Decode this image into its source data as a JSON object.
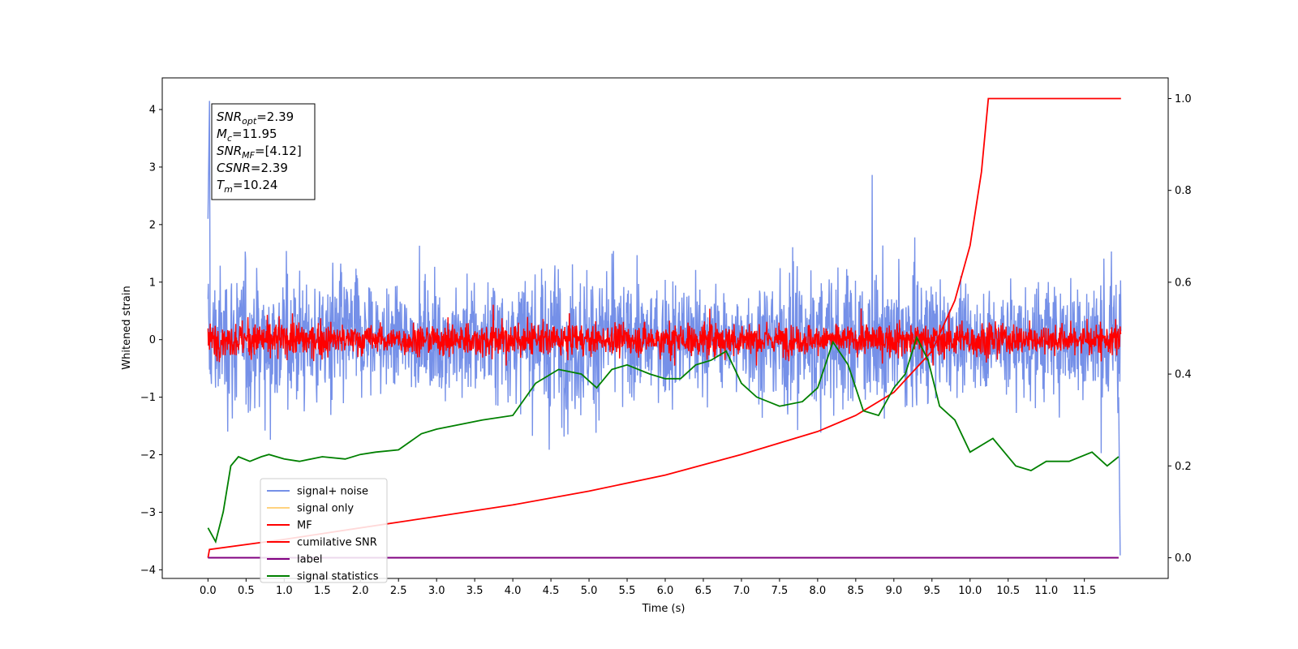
{
  "chart_data": {
    "type": "line",
    "xlabel": "Time (s)",
    "ylabel": "Whitened strain",
    "xlim": [
      -0.6,
      12.6
    ],
    "ylim": [
      -4.15,
      4.55
    ],
    "y2lim": [
      -0.045,
      1.045
    ],
    "grid": false,
    "legend_position": "lower-left",
    "x_ticks": [
      "0.0",
      "0.5",
      "1.0",
      "1.5",
      "2.0",
      "2.5",
      "3.0",
      "3.5",
      "4.0",
      "4.5",
      "5.0",
      "5.5",
      "6.0",
      "6.5",
      "7.0",
      "7.5",
      "8.0",
      "8.5",
      "9.0",
      "9.5",
      "10.0",
      "10.5",
      "11.0",
      "11.5"
    ],
    "y_ticks": [
      "4",
      "3",
      "2",
      "1",
      "0",
      "−1",
      "−2",
      "−3",
      "−4"
    ],
    "y2_ticks": [
      "1.0",
      "0.8",
      "0.6",
      "0.4",
      "0.2",
      "0.0"
    ],
    "annotation_lines": [
      {
        "base": "SNR",
        "sub": "opt",
        "rest": "=2.39"
      },
      {
        "base": "M",
        "sub": "c",
        "rest": "=11.95"
      },
      {
        "base": "SNR",
        "sub": "MF",
        "rest": "=[4.12]"
      },
      {
        "base": "CSNR",
        "sub": "",
        "rest": "=2.39"
      },
      {
        "base": "T",
        "sub": "m",
        "rest": "=10.24"
      }
    ],
    "series": [
      {
        "name": "signal+ noise",
        "color": "#7590e8",
        "axis": "left",
        "kind": "noise",
        "amplitude_range": [
          -3.75,
          4.15
        ],
        "typical_std": 0.75
      },
      {
        "name": "signal only",
        "color": "#ffd27f",
        "axis": "left",
        "kind": "hidden",
        "values": []
      },
      {
        "name": "MF",
        "color": "#ff0000",
        "axis": "left",
        "kind": "noise",
        "amplitude_range": [
          -0.45,
          0.95
        ],
        "typical_std": 0.2
      },
      {
        "name": "cumilative SNR",
        "color": "#ff0000",
        "axis": "right",
        "x": [
          0.0,
          0.02,
          1.0,
          2.0,
          3.0,
          4.0,
          5.0,
          6.0,
          7.0,
          8.0,
          8.5,
          9.0,
          9.5,
          9.8,
          10.0,
          10.15,
          10.24,
          11.98
        ],
        "y": [
          0.0,
          0.018,
          0.04,
          0.065,
          0.09,
          0.115,
          0.145,
          0.18,
          0.225,
          0.275,
          0.31,
          0.36,
          0.45,
          0.56,
          0.68,
          0.84,
          1.0,
          1.0
        ]
      },
      {
        "name": "label",
        "color": "#800080",
        "axis": "right",
        "x": [
          0.0,
          11.95
        ],
        "y": [
          0.0,
          0.0
        ]
      },
      {
        "name": "signal statistics",
        "color": "#008000",
        "axis": "right",
        "x": [
          0.0,
          0.1,
          0.2,
          0.3,
          0.4,
          0.55,
          0.7,
          0.8,
          1.0,
          1.2,
          1.5,
          1.8,
          2.0,
          2.2,
          2.5,
          2.8,
          3.0,
          3.3,
          3.6,
          4.0,
          4.3,
          4.6,
          4.9,
          5.1,
          5.3,
          5.5,
          5.8,
          6.0,
          6.2,
          6.4,
          6.6,
          6.8,
          7.0,
          7.2,
          7.5,
          7.8,
          8.0,
          8.2,
          8.4,
          8.6,
          8.8,
          9.0,
          9.15,
          9.3,
          9.45,
          9.6,
          9.8,
          10.0,
          10.3,
          10.6,
          10.8,
          11.0,
          11.3,
          11.6,
          11.8,
          11.95
        ],
        "y": [
          0.065,
          0.035,
          0.1,
          0.2,
          0.22,
          0.21,
          0.22,
          0.225,
          0.215,
          0.21,
          0.22,
          0.215,
          0.225,
          0.23,
          0.235,
          0.27,
          0.28,
          0.29,
          0.3,
          0.31,
          0.38,
          0.41,
          0.4,
          0.37,
          0.41,
          0.42,
          0.4,
          0.39,
          0.39,
          0.42,
          0.43,
          0.45,
          0.38,
          0.35,
          0.33,
          0.34,
          0.37,
          0.47,
          0.42,
          0.32,
          0.31,
          0.37,
          0.4,
          0.48,
          0.43,
          0.33,
          0.3,
          0.23,
          0.26,
          0.2,
          0.19,
          0.21,
          0.21,
          0.23,
          0.2,
          0.22
        ]
      }
    ]
  }
}
